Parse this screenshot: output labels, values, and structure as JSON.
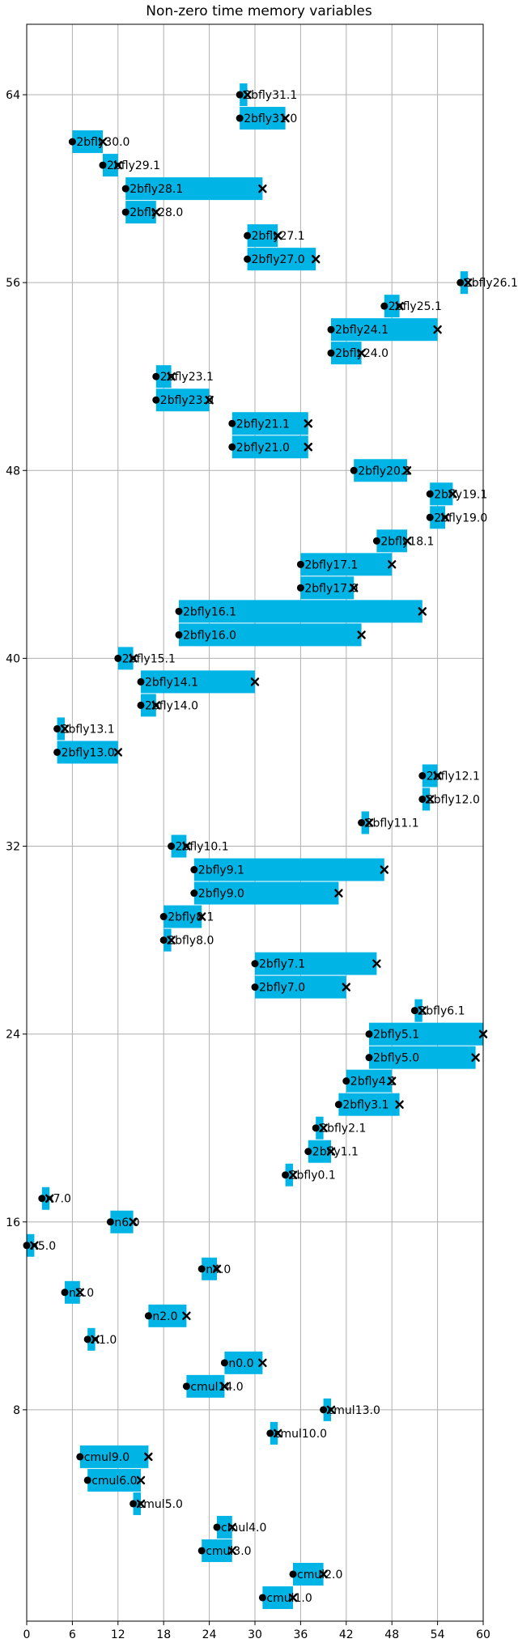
{
  "chart_data": {
    "type": "bar",
    "orientation": "horizontal-intervals",
    "title": "Non-zero time memory variables",
    "xlabel": "",
    "ylabel": "",
    "xlim": [
      0,
      60
    ],
    "ylim": [
      -1,
      67
    ],
    "xticks": [
      0,
      6,
      12,
      18,
      24,
      30,
      36,
      42,
      48,
      54,
      60
    ],
    "yticks": [
      8,
      16,
      24,
      32,
      40,
      48,
      56,
      64
    ],
    "grid": true,
    "bar_color": "#00b4e6",
    "markers": {
      "start": "filled circle",
      "end": "x"
    },
    "intervals": [
      {
        "y": 0,
        "label": "cmul1.0",
        "start": 31,
        "end": 35
      },
      {
        "y": 1,
        "label": "cmul2.0",
        "start": 35,
        "end": 39
      },
      {
        "y": 2,
        "label": "cmul3.0",
        "start": 23,
        "end": 27
      },
      {
        "y": 3,
        "label": "cmul4.0",
        "start": 25,
        "end": 27
      },
      {
        "y": 4,
        "label": "cmul5.0",
        "start": 14,
        "end": 15
      },
      {
        "y": 5,
        "label": "cmul6.0",
        "start": 8,
        "end": 15
      },
      {
        "y": 6,
        "label": "cmul9.0",
        "start": 7,
        "end": 16
      },
      {
        "y": 7,
        "label": "cmul10.0",
        "start": 32,
        "end": 33
      },
      {
        "y": 8,
        "label": "cmul13.0",
        "start": 39,
        "end": 40
      },
      {
        "y": 9,
        "label": "cmul14.0",
        "start": 21,
        "end": 26
      },
      {
        "y": 10,
        "label": "n0.0",
        "start": 26,
        "end": 31
      },
      {
        "y": 11,
        "label": "n1.0",
        "start": 8,
        "end": 9
      },
      {
        "y": 12,
        "label": "n2.0",
        "start": 16,
        "end": 21
      },
      {
        "y": 13,
        "label": "n3.0",
        "start": 5,
        "end": 7
      },
      {
        "y": 14,
        "label": "n4.0",
        "start": 23,
        "end": 25
      },
      {
        "y": 15,
        "label": "n5.0",
        "start": 0,
        "end": 1
      },
      {
        "y": 16,
        "label": "n6.0",
        "start": 11,
        "end": 14
      },
      {
        "y": 17,
        "label": "n7.0",
        "start": 2,
        "end": 3
      },
      {
        "y": 18,
        "label": "2bfly0.1",
        "start": 34,
        "end": 35
      },
      {
        "y": 19,
        "label": "2bfly1.1",
        "start": 37,
        "end": 40
      },
      {
        "y": 20,
        "label": "2bfly2.1",
        "start": 38,
        "end": 39
      },
      {
        "y": 21,
        "label": "2bfly3.1",
        "start": 41,
        "end": 49
      },
      {
        "y": 22,
        "label": "2bfly4.1",
        "start": 42,
        "end": 48
      },
      {
        "y": 23,
        "label": "2bfly5.0",
        "start": 45,
        "end": 59
      },
      {
        "y": 24,
        "label": "2bfly5.1",
        "start": 45,
        "end": 60
      },
      {
        "y": 25,
        "label": "2bfly6.1",
        "start": 51,
        "end": 52
      },
      {
        "y": 26,
        "label": "2bfly7.0",
        "start": 30,
        "end": 42
      },
      {
        "y": 27,
        "label": "2bfly7.1",
        "start": 30,
        "end": 46
      },
      {
        "y": 28,
        "label": "2bfly8.0",
        "start": 18,
        "end": 19
      },
      {
        "y": 29,
        "label": "2bfly8.1",
        "start": 18,
        "end": 23
      },
      {
        "y": 30,
        "label": "2bfly9.0",
        "start": 22,
        "end": 41
      },
      {
        "y": 31,
        "label": "2bfly9.1",
        "start": 22,
        "end": 47
      },
      {
        "y": 32,
        "label": "2bfly10.1",
        "start": 19,
        "end": 21
      },
      {
        "y": 33,
        "label": "2bfly11.1",
        "start": 44,
        "end": 45
      },
      {
        "y": 34,
        "label": "2bfly12.0",
        "start": 52,
        "end": 53
      },
      {
        "y": 35,
        "label": "2bfly12.1",
        "start": 52,
        "end": 54
      },
      {
        "y": 36,
        "label": "2bfly13.0",
        "start": 4,
        "end": 12
      },
      {
        "y": 37,
        "label": "2bfly13.1",
        "start": 4,
        "end": 5
      },
      {
        "y": 38,
        "label": "2bfly14.0",
        "start": 15,
        "end": 17
      },
      {
        "y": 39,
        "label": "2bfly14.1",
        "start": 15,
        "end": 30
      },
      {
        "y": 40,
        "label": "2bfly15.1",
        "start": 12,
        "end": 14
      },
      {
        "y": 41,
        "label": "2bfly16.0",
        "start": 20,
        "end": 44
      },
      {
        "y": 42,
        "label": "2bfly16.1",
        "start": 20,
        "end": 52
      },
      {
        "y": 43,
        "label": "2bfly17.0",
        "start": 36,
        "end": 43
      },
      {
        "y": 44,
        "label": "2bfly17.1",
        "start": 36,
        "end": 48
      },
      {
        "y": 45,
        "label": "2bfly18.1",
        "start": 46,
        "end": 50
      },
      {
        "y": 46,
        "label": "2bfly19.0",
        "start": 53,
        "end": 55
      },
      {
        "y": 47,
        "label": "2bfly19.1",
        "start": 53,
        "end": 56
      },
      {
        "y": 48,
        "label": "2bfly20.1",
        "start": 43,
        "end": 50
      },
      {
        "y": 49,
        "label": "2bfly21.0",
        "start": 27,
        "end": 37
      },
      {
        "y": 50,
        "label": "2bfly21.1",
        "start": 27,
        "end": 37
      },
      {
        "y": 51,
        "label": "2bfly23.0",
        "start": 17,
        "end": 24
      },
      {
        "y": 52,
        "label": "2bfly23.1",
        "start": 17,
        "end": 19
      },
      {
        "y": 53,
        "label": "2bfly24.0",
        "start": 40,
        "end": 44
      },
      {
        "y": 54,
        "label": "2bfly24.1",
        "start": 40,
        "end": 54
      },
      {
        "y": 55,
        "label": "2bfly25.1",
        "start": 47,
        "end": 49
      },
      {
        "y": 56,
        "label": "2bfly26.1",
        "start": 57,
        "end": 58
      },
      {
        "y": 57,
        "label": "2bfly27.0",
        "start": 29,
        "end": 38
      },
      {
        "y": 58,
        "label": "2bfly27.1",
        "start": 29,
        "end": 33
      },
      {
        "y": 59,
        "label": "2bfly28.0",
        "start": 13,
        "end": 17
      },
      {
        "y": 60,
        "label": "2bfly28.1",
        "start": 13,
        "end": 31
      },
      {
        "y": 61,
        "label": "2bfly29.1",
        "start": 10,
        "end": 12
      },
      {
        "y": 62,
        "label": "2bfly30.0",
        "start": 6,
        "end": 10
      },
      {
        "y": 63,
        "label": "2bfly31.0",
        "start": 28,
        "end": 34
      },
      {
        "y": 64,
        "label": "2bfly31.1",
        "start": 28,
        "end": 29
      }
    ]
  }
}
